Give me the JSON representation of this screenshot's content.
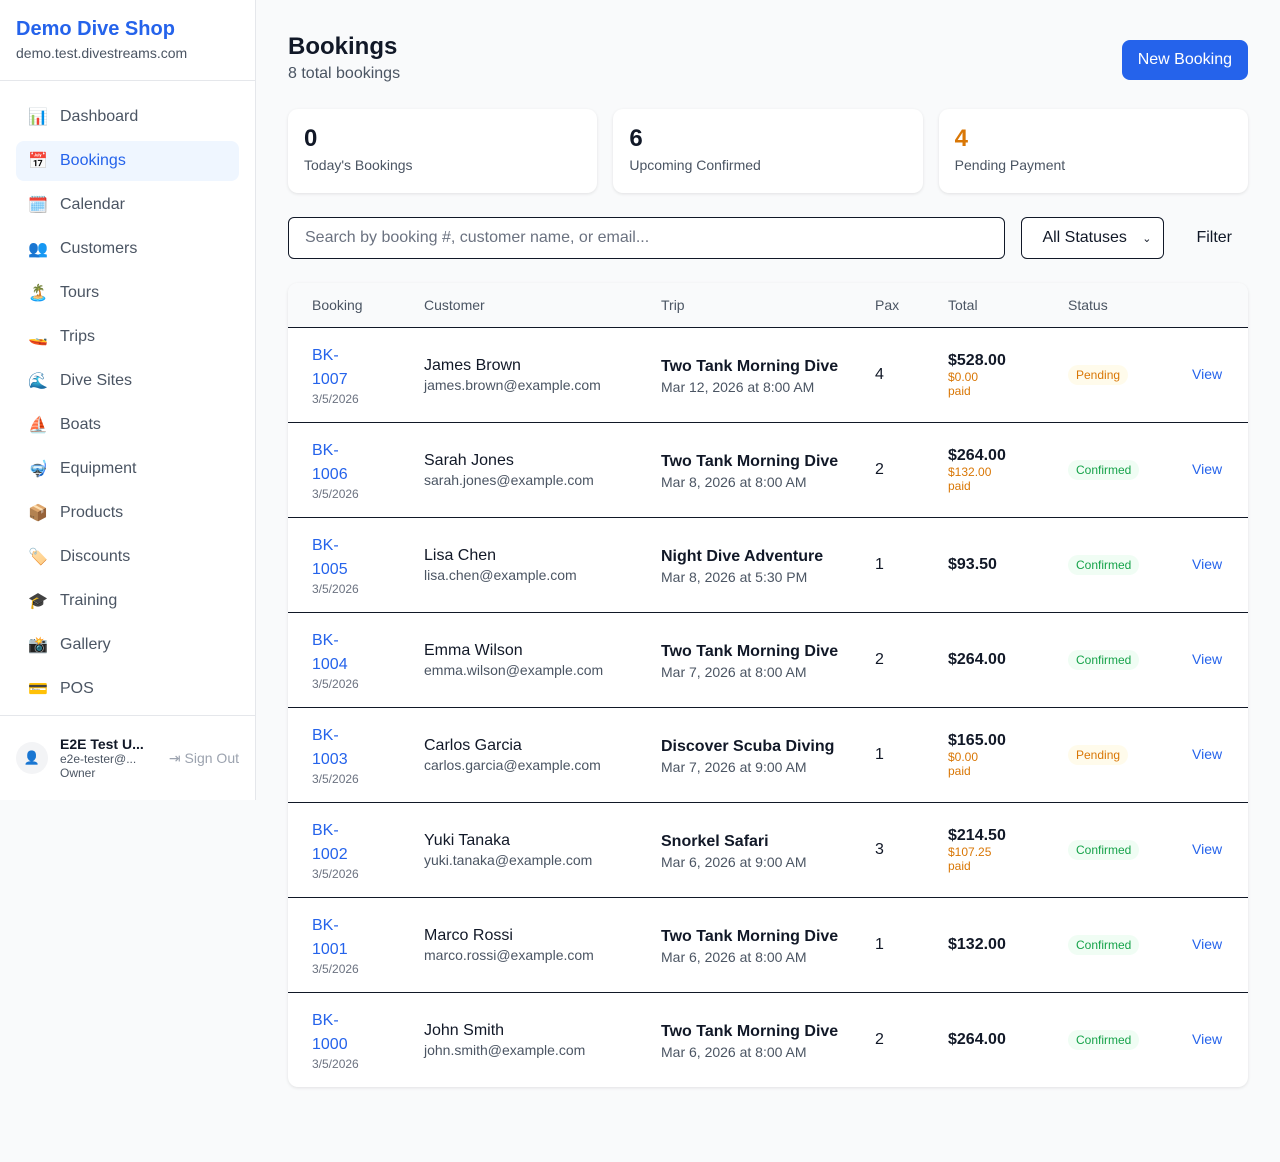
{
  "sidebar": {
    "shop_name": "Demo Dive Shop",
    "domain": "demo.test.divestreams.com",
    "items": [
      {
        "label": "Dashboard",
        "icon": "📊"
      },
      {
        "label": "Bookings",
        "icon": "📅"
      },
      {
        "label": "Calendar",
        "icon": "🗓️"
      },
      {
        "label": "Customers",
        "icon": "👥"
      },
      {
        "label": "Tours",
        "icon": "🏝️"
      },
      {
        "label": "Trips",
        "icon": "🚤"
      },
      {
        "label": "Dive Sites",
        "icon": "🌊"
      },
      {
        "label": "Boats",
        "icon": "⛵"
      },
      {
        "label": "Equipment",
        "icon": "🤿"
      },
      {
        "label": "Products",
        "icon": "📦"
      },
      {
        "label": "Discounts",
        "icon": "🏷️"
      },
      {
        "label": "Training",
        "icon": "🎓"
      },
      {
        "label": "Gallery",
        "icon": "📸"
      },
      {
        "label": "POS",
        "icon": "💳"
      }
    ],
    "active": "Bookings",
    "user": {
      "name": "E2E Test U...",
      "email": "e2e-tester@...",
      "role": "Owner",
      "sign_out": "Sign Out"
    }
  },
  "header": {
    "title": "Bookings",
    "subtitle": "8 total bookings",
    "new_button": "New Booking"
  },
  "stats": [
    {
      "value": "0",
      "label": "Today's Bookings",
      "color": "#111827"
    },
    {
      "value": "6",
      "label": "Upcoming Confirmed",
      "color": "#111827"
    },
    {
      "value": "4",
      "label": "Pending Payment",
      "color": "#d97706"
    }
  ],
  "filters": {
    "search_placeholder": "Search by booking #, customer name, or email...",
    "status": "All Statuses",
    "filter_button": "Filter"
  },
  "table": {
    "headers": [
      "Booking",
      "Customer",
      "Trip",
      "Pax",
      "Total",
      "Status",
      ""
    ],
    "rows": [
      {
        "id": "BK-1007",
        "date": "3/5/2026",
        "name": "James Brown",
        "email": "james.brown@example.com",
        "trip": "Two Tank Morning Dive",
        "trip_date": "Mar 12, 2026 at 8:00 AM",
        "pax": "4",
        "total": "$528.00",
        "paid": "$0.00 paid",
        "status": "Pending",
        "action": "View"
      },
      {
        "id": "BK-1006",
        "date": "3/5/2026",
        "name": "Sarah Jones",
        "email": "sarah.jones@example.com",
        "trip": "Two Tank Morning Dive",
        "trip_date": "Mar 8, 2026 at 8:00 AM",
        "pax": "2",
        "total": "$264.00",
        "paid": "$132.00 paid",
        "status": "Confirmed",
        "action": "View"
      },
      {
        "id": "BK-1005",
        "date": "3/5/2026",
        "name": "Lisa Chen",
        "email": "lisa.chen@example.com",
        "trip": "Night Dive Adventure",
        "trip_date": "Mar 8, 2026 at 5:30 PM",
        "pax": "1",
        "total": "$93.50",
        "paid": null,
        "status": "Confirmed",
        "action": "View"
      },
      {
        "id": "BK-1004",
        "date": "3/5/2026",
        "name": "Emma Wilson",
        "email": "emma.wilson@example.com",
        "trip": "Two Tank Morning Dive",
        "trip_date": "Mar 7, 2026 at 8:00 AM",
        "pax": "2",
        "total": "$264.00",
        "paid": null,
        "status": "Confirmed",
        "action": "View"
      },
      {
        "id": "BK-1003",
        "date": "3/5/2026",
        "name": "Carlos Garcia",
        "email": "carlos.garcia@example.com",
        "trip": "Discover Scuba Diving",
        "trip_date": "Mar 7, 2026 at 9:00 AM",
        "pax": "1",
        "total": "$165.00",
        "paid": "$0.00 paid",
        "status": "Pending",
        "action": "View"
      },
      {
        "id": "BK-1002",
        "date": "3/5/2026",
        "name": "Yuki Tanaka",
        "email": "yuki.tanaka@example.com",
        "trip": "Snorkel Safari",
        "trip_date": "Mar 6, 2026 at 9:00 AM",
        "pax": "3",
        "total": "$214.50",
        "paid": "$107.25 paid",
        "status": "Confirmed",
        "action": "View"
      },
      {
        "id": "BK-1001",
        "date": "3/5/2026",
        "name": "Marco Rossi",
        "email": "marco.rossi@example.com",
        "trip": "Two Tank Morning Dive",
        "trip_date": "Mar 6, 2026 at 8:00 AM",
        "pax": "1",
        "total": "$132.00",
        "paid": null,
        "status": "Confirmed",
        "action": "View"
      },
      {
        "id": "BK-1000",
        "date": "3/5/2026",
        "name": "John Smith",
        "email": "john.smith@example.com",
        "trip": "Two Tank Morning Dive",
        "trip_date": "Mar 6, 2026 at 8:00 AM",
        "pax": "2",
        "total": "$264.00",
        "paid": null,
        "status": "Confirmed",
        "action": "View"
      }
    ]
  }
}
